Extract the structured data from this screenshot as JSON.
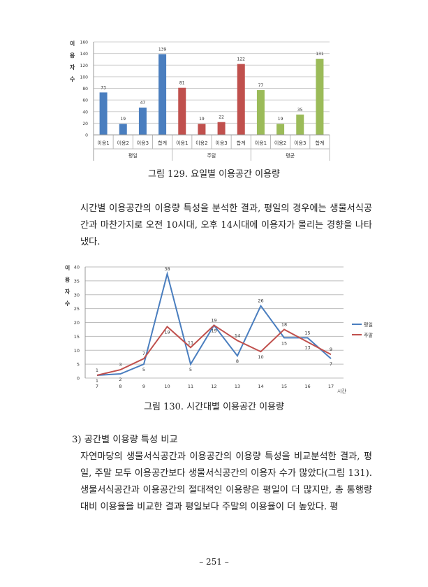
{
  "chart_data": [
    {
      "type": "bar",
      "title": "",
      "ylabel": "이용자수",
      "ylabel_chars": [
        "이",
        "용",
        "자",
        "수"
      ],
      "ylim": [
        0,
        160
      ],
      "yticks": [
        0,
        20,
        40,
        60,
        80,
        100,
        120,
        140,
        160
      ],
      "grid": true,
      "groups": [
        {
          "name": "평일",
          "color": "#4a7ebf",
          "categories": [
            "이용1",
            "이용2",
            "이용3",
            "합계"
          ],
          "values": [
            73,
            19,
            47,
            139
          ]
        },
        {
          "name": "주말",
          "color": "#c0504d",
          "categories": [
            "이용1",
            "이용2",
            "이용3",
            "합계"
          ],
          "values": [
            81,
            19,
            22,
            122
          ]
        },
        {
          "name": "평균",
          "color": "#9bbb59",
          "categories": [
            "이용1",
            "이용2",
            "이용3",
            "합계"
          ],
          "values": [
            77,
            19,
            35,
            131
          ]
        }
      ]
    },
    {
      "type": "line",
      "ylabel": "이용자수",
      "ylabel_chars": [
        "이",
        "용",
        "자",
        "수"
      ],
      "xlabel": "시간",
      "ylim": [
        0,
        40
      ],
      "yticks": [
        0,
        5,
        10,
        15,
        20,
        25,
        30,
        35,
        40
      ],
      "x": [
        7,
        8,
        9,
        10,
        11,
        12,
        13,
        14,
        15,
        16,
        17
      ],
      "grid": true,
      "legend": "right",
      "series": [
        {
          "name": "평일",
          "color": "#4a7ebf",
          "values": [
            1,
            1.5,
            5,
            37.5,
            5,
            19,
            8,
            26,
            14.5,
            14.5,
            7
          ],
          "labels": [
            "1",
            "2",
            "5",
            "38",
            "5",
            "19",
            "8",
            "26",
            "15",
            "15",
            "7"
          ]
        },
        {
          "name": "주말",
          "color": "#c0504d",
          "values": [
            1,
            3,
            7,
            18.5,
            11,
            19,
            13.5,
            9.5,
            17.5,
            13,
            8.5
          ],
          "labels": [
            "1",
            "3",
            "7",
            "19",
            "11",
            "19",
            "14",
            "10",
            "18",
            "13",
            "9"
          ]
        }
      ]
    }
  ],
  "captions": {
    "fig129": "그림 129. 요일별 이용공간 이용량",
    "fig130": "그림 130. 시간대별 이용공간 이용량"
  },
  "body": {
    "para1": "시간별 이용공간의 이용량 특성을 분석한 결과, 평일의 경우에는 생물서식공간과 마찬가지로 오전 10시대, 오후 14시대에 이용자가 몰리는 경향을 나타냈다.",
    "heading": "3) 공간별 이용량 특성 비교",
    "para2": "자연마당의 생물서식공간과 이용공간의 이용량 특성을 비교분석한 결과, 평일, 주말 모두 이용공간보다 생물서식공간의 이용자 수가 많았다(그림 131). 생물서식공간과 이용공간의 절대적인 이용량은 평일이 더 많지만, 총 통행량 대비 이용율을 비교한 결과 평일보다 주말의 이용율이 더 높았다. 평"
  },
  "page_number": "– 251 –"
}
